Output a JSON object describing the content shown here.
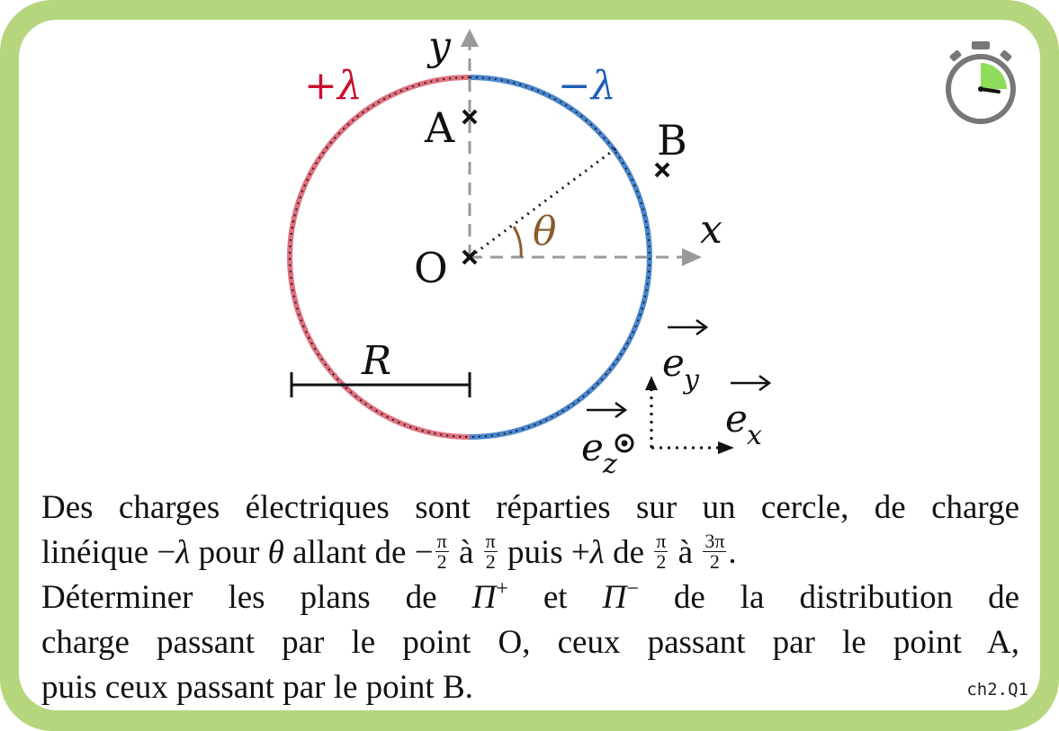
{
  "diagram": {
    "axis_x_label": "x",
    "axis_y_label": "y",
    "charge_plus_label": "+λ",
    "charge_minus_label": "−λ",
    "point_A_label": "A",
    "point_B_label": "B",
    "point_O_label": "O",
    "angle_label": "θ",
    "radius_label": "R",
    "basis_ex": "e",
    "basis_ex_sub": "x",
    "basis_ey": "e",
    "basis_ey_sub": "y",
    "basis_ez": "e",
    "basis_ez_sub": "z",
    "colors": {
      "plus_arc": "#e0707f",
      "minus_arc": "#4a86cf",
      "plus_label": "#c8102e",
      "minus_label": "#1f5fb5",
      "angle": "#8b5a2b",
      "frame_green": "#b6d67e",
      "axis_gray": "#999999",
      "timer_green": "#8fdc5c"
    },
    "icons": [
      "stopwatch-icon"
    ]
  },
  "statement": {
    "line1": "Des charges électriques sont réparties sur un cercle, de charge",
    "line2_a": "linéique −",
    "line2_lambda": "λ",
    "line2_b": " pour ",
    "line2_theta": "θ",
    "line2_c": " allant de −",
    "frac1_num": "π",
    "frac1_den": "2",
    "line2_d": " à ",
    "frac2_num": "π",
    "frac2_den": "2",
    "line2_e": " puis +",
    "line2_lambda2": "λ",
    "line2_f": " de ",
    "frac3_num": "π",
    "frac3_den": "2",
    "line2_g": " à ",
    "frac4_num": "3π",
    "frac4_den": "2",
    "line2_h": ".",
    "line3_a": "Déterminer les plans de ",
    "line3_pi1": "Π",
    "line3_sup1": "+",
    "line3_b": " et ",
    "line3_pi2": "Π",
    "line3_sup2": "−",
    "line3_c": " de la distribution de",
    "line4": "charge passant par le point O, ceux passant par le point A,",
    "line5": "puis ceux passant par le point B."
  },
  "reference_code": "ch2.Q1"
}
